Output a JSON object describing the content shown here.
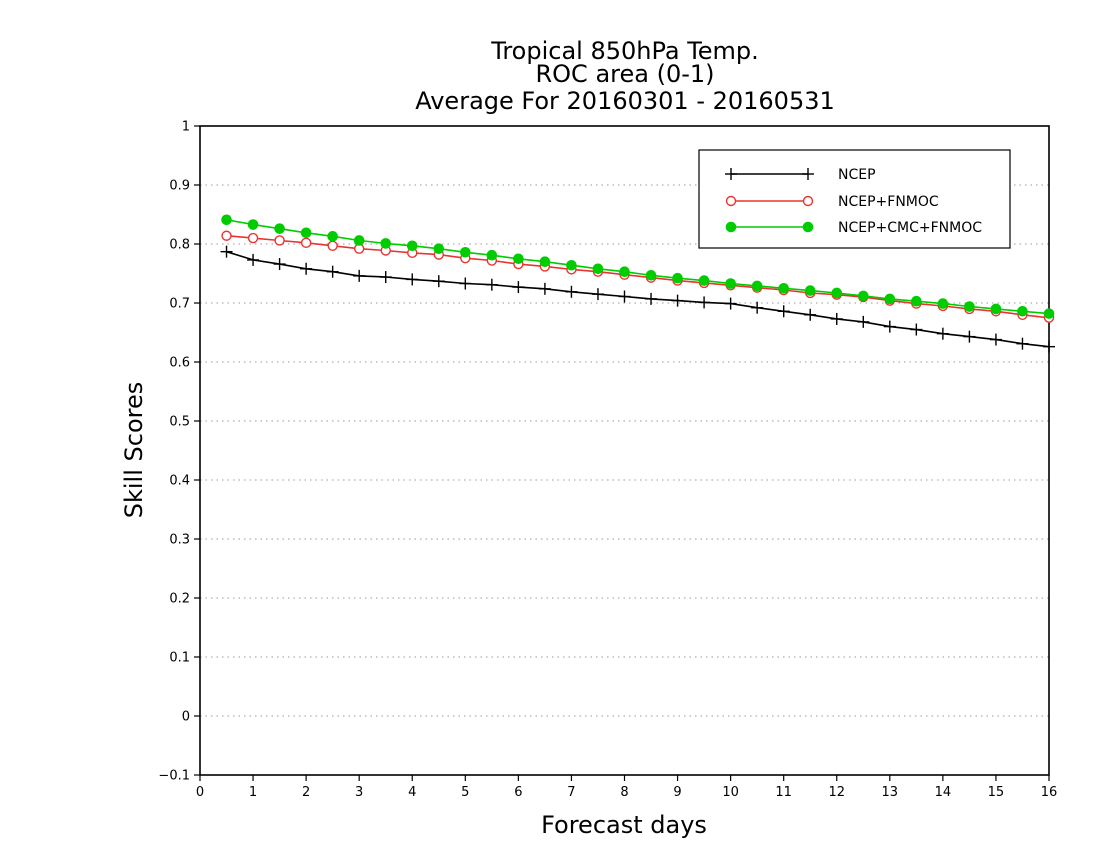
{
  "chart_data": {
    "type": "line",
    "title_lines": [
      "Tropical 850hPa Temp.",
      "ROC area (0-1)",
      "Average For 20160301 - 20160531"
    ],
    "xlabel": "Forecast days",
    "ylabel": "Skill Scores",
    "xlim": [
      0,
      16
    ],
    "ylim": [
      -0.1,
      1
    ],
    "x_ticks": [
      "0",
      "1",
      "2",
      "3",
      "4",
      "5",
      "6",
      "7",
      "8",
      "9",
      "10",
      "11",
      "12",
      "13",
      "14",
      "15",
      "16"
    ],
    "y_ticks": [
      "−0.1",
      "0",
      "0.1",
      "0.2",
      "0.3",
      "0.4",
      "0.5",
      "0.6",
      "0.7",
      "0.8",
      "0.9",
      "1"
    ],
    "grid": "horizontal-dotted",
    "legend_position": "top-right",
    "x": [
      0.5,
      1,
      1.5,
      2,
      2.5,
      3,
      3.5,
      4,
      4.5,
      5,
      5.5,
      6,
      6.5,
      7,
      7.5,
      8,
      8.5,
      9,
      9.5,
      10,
      10.5,
      11,
      11.5,
      12,
      12.5,
      13,
      13.5,
      14,
      14.5,
      15,
      15.5,
      16
    ],
    "series": [
      {
        "name": "NCEP",
        "color": "#000000",
        "marker": "plus",
        "values": [
          0.787,
          0.773,
          0.766,
          0.758,
          0.753,
          0.746,
          0.744,
          0.74,
          0.737,
          0.733,
          0.731,
          0.727,
          0.724,
          0.719,
          0.715,
          0.711,
          0.707,
          0.704,
          0.701,
          0.699,
          0.692,
          0.686,
          0.68,
          0.673,
          0.668,
          0.66,
          0.655,
          0.648,
          0.643,
          0.638,
          0.631,
          0.626
        ]
      },
      {
        "name": "NCEP+FNMOC",
        "color": "#e8352f",
        "marker": "open-circle",
        "values": [
          0.814,
          0.81,
          0.806,
          0.802,
          0.797,
          0.792,
          0.789,
          0.785,
          0.782,
          0.776,
          0.772,
          0.766,
          0.762,
          0.757,
          0.753,
          0.748,
          0.743,
          0.738,
          0.734,
          0.73,
          0.726,
          0.722,
          0.717,
          0.714,
          0.71,
          0.704,
          0.699,
          0.695,
          0.69,
          0.686,
          0.68,
          0.675
        ]
      },
      {
        "name": "NCEP+CMC+FNMOC",
        "color": "#00cc00",
        "marker": "filled-circle",
        "values": [
          0.841,
          0.833,
          0.826,
          0.819,
          0.813,
          0.806,
          0.801,
          0.797,
          0.792,
          0.786,
          0.781,
          0.775,
          0.77,
          0.764,
          0.758,
          0.753,
          0.747,
          0.742,
          0.738,
          0.733,
          0.729,
          0.725,
          0.721,
          0.717,
          0.712,
          0.707,
          0.703,
          0.699,
          0.694,
          0.69,
          0.686,
          0.682
        ]
      }
    ]
  }
}
